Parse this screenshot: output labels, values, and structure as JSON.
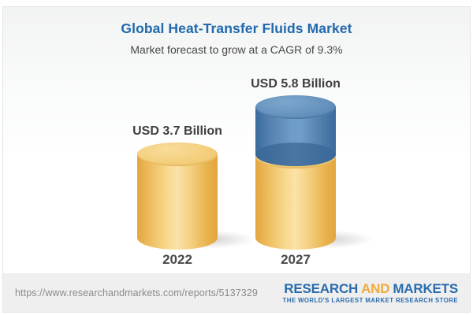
{
  "page": {
    "title": "Global Heat-Transfer Fluids Market",
    "subtitle": "Market forecast to grow at a CAGR of 9.3%",
    "title_color": "#2069ae"
  },
  "chart_data": {
    "type": "bar",
    "variant": "3d-cylinder",
    "categories": [
      "2022",
      "2027"
    ],
    "values": [
      3.7,
      5.8
    ],
    "value_labels": [
      "USD 3.7 Billion",
      "USD 5.8 Billion"
    ],
    "unit": "USD Billion",
    "cagr_pct": 9.3,
    "legend": "none",
    "grid": "off",
    "colors": {
      "base_segment": "#F2C96F",
      "growth_segment": "#5285B3"
    }
  },
  "footer": {
    "report_url": "https://www.researchandmarkets.com/reports/5137329",
    "logo": {
      "part1": "RESEARCH",
      "part2": "AND",
      "part3": "MARKETS",
      "tagline": "THE WORLD'S LARGEST MARKET RESEARCH STORE"
    },
    "logo_colors": {
      "primary": "#2A6CAE",
      "accent": "#EFAB3C"
    }
  }
}
